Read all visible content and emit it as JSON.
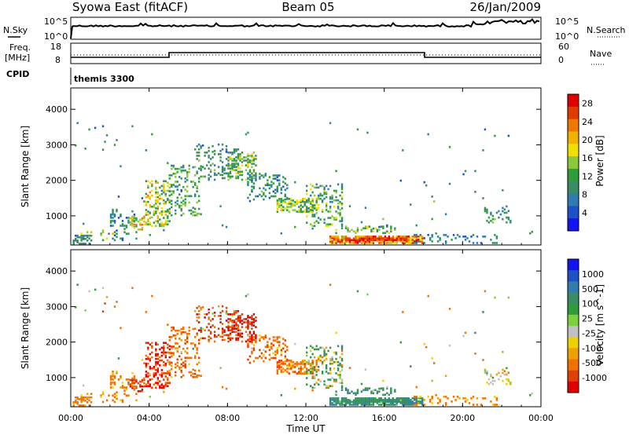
{
  "header": {
    "title": "Syowa East (fitACF)",
    "beam": "Beam 05",
    "date": "26/Jan/2009"
  },
  "status_panel": {
    "nsky_label": "N.Sky",
    "nsearch_label": "N.Search",
    "log_tick_top": "10^5",
    "log_tick_bottom": "10^0",
    "freq_label_line1": "Freq.",
    "freq_label_line2": "[MHz]",
    "freq_tick_top": "18",
    "freq_tick_bottom": "8",
    "nave_label": "Nave",
    "nave_tick_top": "60",
    "nave_tick_bottom": "0",
    "cpid_label": "CPID",
    "cpid_value": "themis 3300"
  },
  "chart_data": [
    {
      "type": "heatmap",
      "ylabel": "Slant Range [km]",
      "xlabel": "Time UT",
      "x_range_hours": [
        0,
        24
      ],
      "xticks": [
        "00:00",
        "04:00",
        "08:00",
        "12:00",
        "16:00",
        "20:00",
        "00:00"
      ],
      "ylim": [
        180,
        4600
      ],
      "yticks": [
        "1000",
        "2000",
        "3000",
        "4000"
      ],
      "colorbar": {
        "label": "Power [dB]",
        "ticks": [
          "4",
          "8",
          "12",
          "16",
          "20",
          "24",
          "28"
        ],
        "range": [
          0,
          30
        ],
        "colors": [
          "#1414f0",
          "#1e50c8",
          "#2e7cb0",
          "#3a8c64",
          "#2f9e3a",
          "#8cc83c",
          "#f0e000",
          "#f0b400",
          "#f07800",
          "#e03c00",
          "#e00000"
        ]
      }
    },
    {
      "type": "heatmap",
      "ylabel": "Slant Range [km]",
      "xlabel": "Time UT",
      "x_range_hours": [
        0,
        24
      ],
      "xticks": [
        "00:00",
        "04:00",
        "08:00",
        "12:00",
        "16:00",
        "20:00",
        "00:00"
      ],
      "ylim": [
        180,
        4600
      ],
      "yticks": [
        "1000",
        "2000",
        "3000",
        "4000"
      ],
      "colorbar": {
        "label": "Velocity [m s^-1]",
        "ticks": [
          "1000",
          "500",
          "100",
          "25",
          "-25",
          "-100",
          "-500",
          "-1000"
        ],
        "range": [
          -1000,
          1000
        ],
        "colors": [
          "#1414f0",
          "#1e50c8",
          "#2e7cb0",
          "#3a8c64",
          "#2f9e3a",
          "#7cd040",
          "#c0c0c0",
          "#f0d000",
          "#f0a000",
          "#f07000",
          "#e04000",
          "#e00000"
        ]
      }
    }
  ],
  "scatter_regions": [
    {
      "t": [
        0.1,
        1.0
      ],
      "r": [
        200,
        450
      ],
      "density": 0.55,
      "p": [
        4,
        14
      ],
      "v": [
        -300,
        -50
      ]
    },
    {
      "t": [
        0.5,
        2.2
      ],
      "r": [
        300,
        600
      ],
      "density": 0.12,
      "p": [
        6,
        20
      ],
      "v": [
        -300,
        -40
      ]
    },
    {
      "t": [
        2.0,
        3.4
      ],
      "r": [
        300,
        1200
      ],
      "density": 0.18,
      "p": [
        4,
        14
      ],
      "v": [
        -300,
        -30
      ]
    },
    {
      "t": [
        3.0,
        3.8
      ],
      "r": [
        600,
        1000
      ],
      "density": 0.5,
      "p": [
        12,
        24
      ],
      "v": [
        -600,
        -100
      ]
    },
    {
      "t": [
        3.8,
        5.0
      ],
      "r": [
        700,
        2000
      ],
      "density": 0.35,
      "p": [
        8,
        22
      ],
      "v": [
        -800,
        -150
      ]
    },
    {
      "t": [
        5.0,
        6.5
      ],
      "r": [
        1000,
        2400
      ],
      "density": 0.22,
      "p": [
        6,
        16
      ],
      "v": [
        -400,
        -50
      ]
    },
    {
      "t": [
        6.3,
        8.5
      ],
      "r": [
        2000,
        3000
      ],
      "density": 0.2,
      "p": [
        6,
        14
      ],
      "v": [
        -600,
        -50
      ]
    },
    {
      "t": [
        8.0,
        9.4
      ],
      "r": [
        2000,
        2800
      ],
      "density": 0.4,
      "p": [
        8,
        18
      ],
      "v": [
        -900,
        -200
      ]
    },
    {
      "t": [
        9.0,
        11.0
      ],
      "r": [
        1400,
        2200
      ],
      "density": 0.22,
      "p": [
        4,
        14
      ],
      "v": [
        -400,
        20
      ]
    },
    {
      "t": [
        10.5,
        12.5
      ],
      "r": [
        1100,
        1500
      ],
      "density": 0.45,
      "p": [
        8,
        20
      ],
      "v": [
        -400,
        -50
      ]
    },
    {
      "t": [
        12.0,
        13.8
      ],
      "r": [
        700,
        1900
      ],
      "density": 0.25,
      "p": [
        6,
        18
      ],
      "v": [
        -150,
        300
      ]
    },
    {
      "t": [
        13.2,
        18.0
      ],
      "r": [
        220,
        420
      ],
      "density": 0.85,
      "p": [
        16,
        30
      ],
      "v": [
        50,
        400
      ]
    },
    {
      "t": [
        14.0,
        17.2
      ],
      "r": [
        300,
        380
      ],
      "density": 0.9,
      "p": [
        24,
        30
      ],
      "v": [
        50,
        300
      ]
    },
    {
      "t": [
        13.5,
        16.5
      ],
      "r": [
        500,
        700
      ],
      "density": 0.25,
      "p": [
        8,
        18
      ],
      "v": [
        60,
        400
      ]
    },
    {
      "t": [
        17.5,
        21.8
      ],
      "r": [
        220,
        450
      ],
      "density": 0.15,
      "p": [
        4,
        12
      ],
      "v": [
        -300,
        -30
      ]
    },
    {
      "t": [
        21.0,
        22.5
      ],
      "r": [
        800,
        1300
      ],
      "density": 0.18,
      "p": [
        6,
        14
      ],
      "v": [
        -100,
        100
      ]
    },
    {
      "t": [
        1.6,
        2.4
      ],
      "r": [
        2800,
        3500
      ],
      "density": 0.06,
      "p": [
        6,
        14
      ],
      "v": [
        -400,
        0
      ]
    },
    {
      "t": [
        0.0,
        24.0
      ],
      "r": [
        400,
        3600
      ],
      "density": 0.004,
      "p": [
        4,
        14
      ],
      "v": [
        -200,
        200
      ]
    }
  ]
}
